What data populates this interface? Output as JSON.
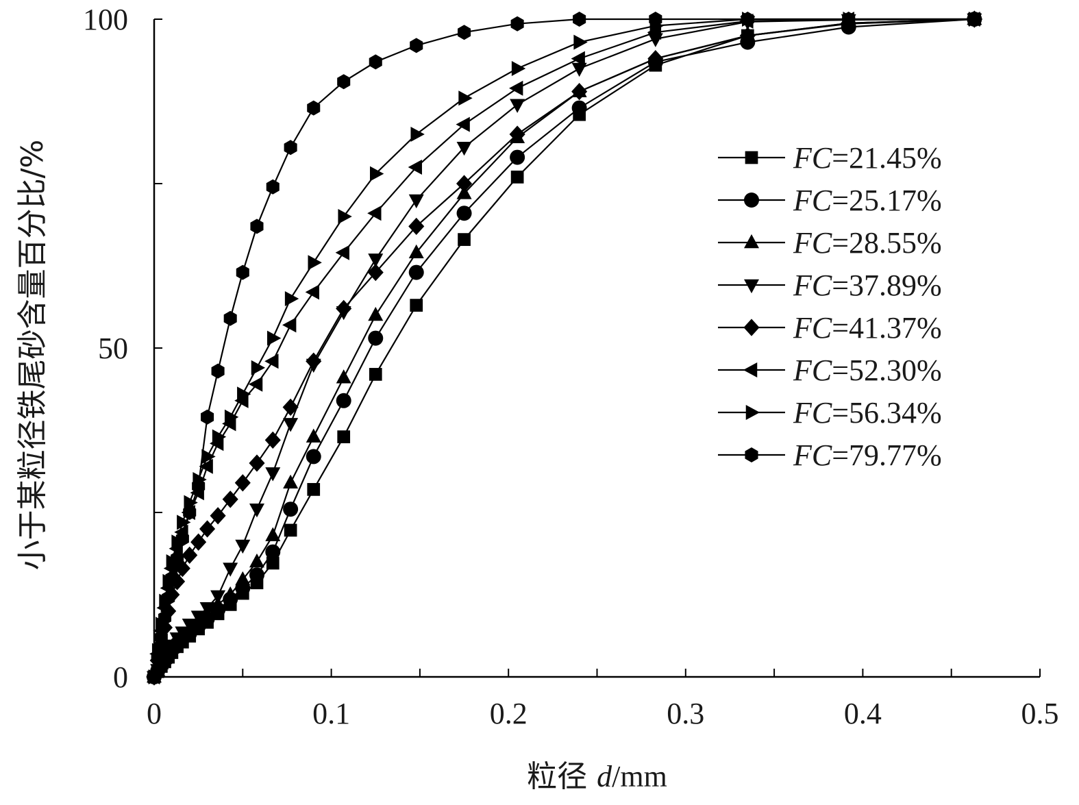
{
  "chart_data": {
    "type": "line",
    "title": "",
    "xlabel_prefix": "粒径 ",
    "xlabel_var": "d",
    "xlabel_unit": "/mm",
    "ylabel": "小于某粒径铁尾砂含量百分比/%",
    "xlim": [
      0,
      0.5
    ],
    "ylim": [
      0,
      100
    ],
    "x_ticks": [
      "0",
      "0.1",
      "0.2",
      "0.3",
      "0.4",
      "0.5"
    ],
    "y_ticks": [
      "0",
      "50",
      "100"
    ],
    "grid": false,
    "legend_position": "right",
    "legend_prefix": "FC",
    "colors": {
      "line": "#000000",
      "text": "#1a1a1a"
    },
    "series": [
      {
        "name": "=21.45%",
        "marker": "square",
        "x": [
          0.0,
          0.002,
          0.004,
          0.006,
          0.008,
          0.01,
          0.013,
          0.016,
          0.02,
          0.025,
          0.03,
          0.036,
          0.043,
          0.05,
          0.058,
          0.067,
          0.077,
          0.09,
          0.107,
          0.125,
          0.148,
          0.175,
          0.205,
          0.24,
          0.283,
          0.335,
          0.392,
          0.463
        ],
        "y": [
          0.0,
          0.8,
          1.6,
          2.3,
          3.0,
          3.7,
          4.6,
          5.3,
          6.2,
          7.3,
          8.3,
          9.6,
          11.0,
          12.7,
          14.3,
          17.3,
          22.3,
          28.5,
          36.5,
          46.0,
          56.5,
          66.5,
          76.0,
          85.5,
          93.0,
          97.5,
          99.3,
          100.0
        ]
      },
      {
        "name": "=25.17%",
        "marker": "circle",
        "x": [
          0.0,
          0.002,
          0.004,
          0.006,
          0.008,
          0.01,
          0.013,
          0.016,
          0.02,
          0.025,
          0.03,
          0.036,
          0.043,
          0.05,
          0.058,
          0.067,
          0.077,
          0.09,
          0.107,
          0.125,
          0.148,
          0.175,
          0.205,
          0.24,
          0.283,
          0.335,
          0.392,
          0.463
        ],
        "y": [
          0.0,
          0.9,
          1.8,
          2.6,
          3.4,
          4.1,
          5.0,
          5.8,
          6.6,
          7.7,
          8.8,
          10.2,
          11.8,
          13.5,
          15.5,
          19.0,
          25.5,
          33.5,
          42.0,
          51.5,
          61.5,
          70.5,
          79.0,
          86.5,
          93.5,
          96.5,
          98.8,
          100.0
        ]
      },
      {
        "name": "=28.55%",
        "marker": "triangle-up",
        "x": [
          0.0,
          0.002,
          0.004,
          0.006,
          0.008,
          0.01,
          0.013,
          0.016,
          0.02,
          0.025,
          0.03,
          0.036,
          0.043,
          0.05,
          0.058,
          0.067,
          0.077,
          0.09,
          0.107,
          0.125,
          0.148,
          0.175,
          0.205,
          0.24,
          0.283,
          0.335,
          0.392,
          0.463
        ],
        "y": [
          0.0,
          1.0,
          2.0,
          2.8,
          3.6,
          4.4,
          5.4,
          6.3,
          7.3,
          8.4,
          9.6,
          11.0,
          12.5,
          14.8,
          17.5,
          21.5,
          29.5,
          36.5,
          45.5,
          55.0,
          64.5,
          73.5,
          82.0,
          89.0,
          94.0,
          97.5,
          99.4,
          100.0
        ]
      },
      {
        "name": "=37.89%",
        "marker": "triangle-down",
        "x": [
          0.0,
          0.002,
          0.004,
          0.006,
          0.008,
          0.01,
          0.013,
          0.016,
          0.02,
          0.025,
          0.03,
          0.036,
          0.043,
          0.05,
          0.058,
          0.067,
          0.077,
          0.09,
          0.107,
          0.125,
          0.148,
          0.175,
          0.205,
          0.24,
          0.283,
          0.335,
          0.392,
          0.463
        ],
        "y": [
          0.0,
          1.1,
          2.2,
          3.1,
          4.0,
          4.8,
          5.9,
          6.8,
          8.0,
          9.2,
          10.5,
          12.3,
          16.5,
          20.0,
          25.5,
          31.0,
          38.5,
          47.5,
          55.5,
          63.5,
          72.5,
          80.5,
          87.0,
          92.5,
          97.0,
          99.6,
          99.9,
          100.0
        ]
      },
      {
        "name": "=41.37%",
        "marker": "diamond",
        "x": [
          0.0,
          0.002,
          0.004,
          0.006,
          0.008,
          0.01,
          0.013,
          0.016,
          0.02,
          0.025,
          0.03,
          0.036,
          0.043,
          0.05,
          0.058,
          0.067,
          0.077,
          0.09,
          0.107,
          0.125,
          0.148,
          0.175,
          0.205,
          0.24,
          0.283,
          0.335,
          0.392,
          0.463
        ],
        "y": [
          0.0,
          2.5,
          5.0,
          7.5,
          10.0,
          12.5,
          14.5,
          16.5,
          18.5,
          20.5,
          22.5,
          24.5,
          27.0,
          29.5,
          32.5,
          36.0,
          41.0,
          48.0,
          56.0,
          61.5,
          68.5,
          75.0,
          82.5,
          89.0,
          94.0,
          97.5,
          99.4,
          100.0
        ]
      },
      {
        "name": "=52.30%",
        "marker": "triangle-left",
        "x": [
          0.0,
          0.002,
          0.004,
          0.006,
          0.008,
          0.01,
          0.013,
          0.016,
          0.02,
          0.025,
          0.03,
          0.036,
          0.043,
          0.05,
          0.058,
          0.067,
          0.077,
          0.09,
          0.107,
          0.125,
          0.148,
          0.175,
          0.205,
          0.24,
          0.283,
          0.335,
          0.392,
          0.463
        ],
        "y": [
          0.0,
          3.5,
          7.0,
          10.5,
          13.5,
          16.5,
          19.5,
          22.0,
          25.0,
          28.0,
          32.0,
          35.5,
          38.5,
          42.0,
          44.5,
          48.0,
          53.5,
          58.5,
          64.5,
          70.5,
          77.5,
          84.0,
          89.5,
          94.0,
          98.0,
          99.7,
          100.0,
          100.0
        ]
      },
      {
        "name": "=56.34%",
        "marker": "triangle-right",
        "x": [
          0.0,
          0.002,
          0.004,
          0.006,
          0.008,
          0.01,
          0.013,
          0.016,
          0.02,
          0.025,
          0.03,
          0.036,
          0.043,
          0.05,
          0.058,
          0.067,
          0.077,
          0.09,
          0.107,
          0.125,
          0.148,
          0.175,
          0.205,
          0.24,
          0.283,
          0.335,
          0.392,
          0.463
        ],
        "y": [
          0.0,
          4.0,
          8.0,
          11.5,
          14.5,
          17.5,
          20.5,
          23.5,
          26.5,
          30.0,
          33.5,
          36.5,
          39.5,
          43.0,
          47.0,
          51.5,
          57.5,
          63.0,
          70.0,
          76.5,
          82.5,
          88.0,
          92.5,
          96.5,
          99.0,
          100.0,
          100.0,
          100.0
        ]
      },
      {
        "name": "=79.77%",
        "marker": "hexagon",
        "x": [
          0.0,
          0.002,
          0.004,
          0.006,
          0.008,
          0.01,
          0.013,
          0.016,
          0.02,
          0.025,
          0.03,
          0.036,
          0.043,
          0.05,
          0.058,
          0.067,
          0.077,
          0.09,
          0.107,
          0.125,
          0.148,
          0.175,
          0.205,
          0.24,
          0.283,
          0.335,
          0.392,
          0.463
        ],
        "y": [
          0.0,
          3.0,
          6.0,
          9.0,
          12.0,
          15.0,
          18.0,
          21.0,
          25.0,
          29.0,
          39.5,
          46.5,
          54.5,
          61.5,
          68.5,
          74.5,
          80.5,
          86.5,
          90.5,
          93.5,
          96.0,
          98.0,
          99.3,
          100.0,
          100.0,
          100.0,
          100.0,
          100.0
        ]
      }
    ]
  }
}
